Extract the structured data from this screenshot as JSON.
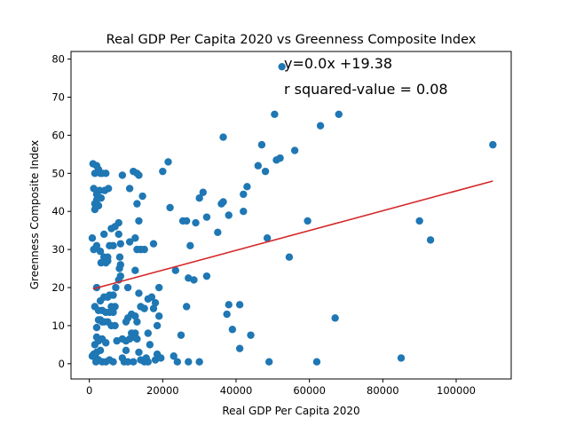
{
  "chart_data": {
    "type": "scatter",
    "title": "Real GDP Per Capita 2020 vs Greenness Composite Index",
    "xlabel": "Real GDP Per Capita 2020",
    "ylabel": "Greenness Composite Index",
    "xlim": [
      -5000,
      115000
    ],
    "ylim": [
      -4,
      82
    ],
    "x_ticks": [
      0,
      20000,
      40000,
      60000,
      80000,
      100000
    ],
    "y_ticks": [
      0,
      10,
      20,
      30,
      40,
      50,
      60,
      70,
      80
    ],
    "x_tick_labels": [
      "0",
      "20000",
      "40000",
      "60000",
      "80000",
      "100000"
    ],
    "y_tick_labels": [
      "0",
      "10",
      "20",
      "30",
      "40",
      "50",
      "60",
      "70",
      "80"
    ],
    "grid": false,
    "point_color": "#1f77b4",
    "line_color": "#d62728",
    "regression": {
      "slope": 0.00026,
      "intercept": 19.38,
      "x_range": [
        1000,
        110000
      ],
      "equation_label": "y=0.0x +19.38",
      "r2_label": "r squared-value = 0.08"
    },
    "points": [
      [
        1000,
        52.5
      ],
      [
        1500,
        50
      ],
      [
        2000,
        52
      ],
      [
        2500,
        51
      ],
      [
        3000,
        50
      ],
      [
        3500,
        50
      ],
      [
        4500,
        50
      ],
      [
        1200,
        46
      ],
      [
        2000,
        44.5
      ],
      [
        2800,
        45.5
      ],
      [
        4200,
        45.5
      ],
      [
        5200,
        46
      ],
      [
        1500,
        42
      ],
      [
        2500,
        41.5
      ],
      [
        3200,
        43.5
      ],
      [
        1500,
        40.5
      ],
      [
        2000,
        43
      ],
      [
        800,
        33
      ],
      [
        1200,
        30
      ],
      [
        2000,
        31
      ],
      [
        3000,
        29.5
      ],
      [
        4000,
        28
      ],
      [
        5000,
        27
      ],
      [
        3200,
        26.5
      ],
      [
        4000,
        34
      ],
      [
        6000,
        35.5
      ],
      [
        7000,
        36
      ],
      [
        8000,
        37
      ],
      [
        9000,
        49.5
      ],
      [
        11000,
        46
      ],
      [
        12000,
        50.5
      ],
      [
        13000,
        50
      ],
      [
        13500,
        49.5
      ],
      [
        8000,
        34
      ],
      [
        8500,
        31.5
      ],
      [
        6500,
        31
      ],
      [
        5500,
        31
      ],
      [
        5000,
        28
      ],
      [
        4500,
        26.5
      ],
      [
        8500,
        26
      ],
      [
        8200,
        25
      ],
      [
        8500,
        23
      ],
      [
        8300,
        28
      ],
      [
        8000,
        22
      ],
      [
        7200,
        20
      ],
      [
        5500,
        18
      ],
      [
        5000,
        17.5
      ],
      [
        6500,
        18
      ],
      [
        4000,
        17.5
      ],
      [
        3000,
        16.5
      ],
      [
        2000,
        20
      ],
      [
        1500,
        15
      ],
      [
        2500,
        14
      ],
      [
        3500,
        14
      ],
      [
        4500,
        13.5
      ],
      [
        5500,
        13.5
      ],
      [
        6500,
        13.5
      ],
      [
        7000,
        15
      ],
      [
        6000,
        15
      ],
      [
        2500,
        11.5
      ],
      [
        3000,
        11.5
      ],
      [
        3500,
        11
      ],
      [
        2000,
        9.5
      ],
      [
        4000,
        11
      ],
      [
        5000,
        11
      ],
      [
        6000,
        10
      ],
      [
        7000,
        10
      ],
      [
        2000,
        7
      ],
      [
        2500,
        6
      ],
      [
        3500,
        6.5
      ],
      [
        4500,
        5.5
      ],
      [
        1500,
        5
      ],
      [
        2000,
        3
      ],
      [
        3000,
        3.5
      ],
      [
        1200,
        2.5
      ],
      [
        800,
        2
      ],
      [
        1800,
        1.5
      ],
      [
        2500,
        1
      ],
      [
        3500,
        0.5
      ],
      [
        4500,
        0.5
      ],
      [
        5500,
        1
      ],
      [
        6500,
        0.5
      ],
      [
        1800,
        0.5
      ],
      [
        7500,
        6
      ],
      [
        9000,
        6.5
      ],
      [
        10000,
        6
      ],
      [
        11000,
        6.5
      ],
      [
        12000,
        7
      ],
      [
        11500,
        8
      ],
      [
        12500,
        8
      ],
      [
        13000,
        6.5
      ],
      [
        10500,
        12
      ],
      [
        11500,
        13
      ],
      [
        12500,
        12.5
      ],
      [
        13000,
        11
      ],
      [
        10000,
        11
      ],
      [
        14000,
        15
      ],
      [
        15000,
        14.5
      ],
      [
        16000,
        17
      ],
      [
        17000,
        17.5
      ],
      [
        18000,
        16
      ],
      [
        17500,
        14.5
      ],
      [
        19000,
        12.5
      ],
      [
        18500,
        10
      ],
      [
        13500,
        18.5
      ],
      [
        10500,
        20
      ],
      [
        11000,
        32
      ],
      [
        12500,
        33
      ],
      [
        13000,
        30
      ],
      [
        14000,
        30
      ],
      [
        15000,
        30
      ],
      [
        12500,
        24.5
      ],
      [
        13500,
        37.5
      ],
      [
        14500,
        44
      ],
      [
        13000,
        42
      ],
      [
        17500,
        31.5
      ],
      [
        19000,
        20
      ],
      [
        22000,
        41
      ],
      [
        23500,
        24.5
      ],
      [
        24000,
        0.5
      ],
      [
        23000,
        2
      ],
      [
        25000,
        7.5
      ],
      [
        26500,
        15
      ],
      [
        27000,
        22.5
      ],
      [
        28500,
        22
      ],
      [
        25500,
        37.5
      ],
      [
        26500,
        37.5
      ],
      [
        27500,
        31
      ],
      [
        29000,
        37
      ],
      [
        30000,
        43.5
      ],
      [
        31000,
        45
      ],
      [
        32000,
        38.5
      ],
      [
        32000,
        23
      ],
      [
        35000,
        34.5
      ],
      [
        36000,
        42
      ],
      [
        36500,
        42.5
      ],
      [
        38000,
        39
      ],
      [
        36500,
        59.5
      ],
      [
        37500,
        13
      ],
      [
        38000,
        15.5
      ],
      [
        39000,
        9
      ],
      [
        41000,
        4
      ],
      [
        41000,
        15.5
      ],
      [
        42000,
        40
      ],
      [
        42000,
        44.5
      ],
      [
        43000,
        46.5
      ],
      [
        44000,
        7.5
      ],
      [
        46000,
        52
      ],
      [
        47000,
        57.5
      ],
      [
        48000,
        50.5
      ],
      [
        48500,
        33
      ],
      [
        49000,
        0.5
      ],
      [
        50500,
        65.5
      ],
      [
        51000,
        53.5
      ],
      [
        52000,
        54
      ],
      [
        52500,
        78
      ],
      [
        54500,
        28
      ],
      [
        56000,
        56
      ],
      [
        59500,
        37.5
      ],
      [
        62000,
        0.5
      ],
      [
        63000,
        62.5
      ],
      [
        67000,
        12
      ],
      [
        68000,
        65.5
      ],
      [
        85000,
        1.5
      ],
      [
        90000,
        37.5
      ],
      [
        93000,
        32.5
      ],
      [
        110000,
        57.5
      ],
      [
        10500,
        0.5
      ],
      [
        12000,
        0.5
      ],
      [
        15000,
        0.5
      ],
      [
        16000,
        0.5
      ],
      [
        18000,
        1
      ],
      [
        18500,
        2.5
      ],
      [
        19500,
        1.5
      ],
      [
        20000,
        50.5
      ],
      [
        21500,
        53
      ],
      [
        27000,
        0.5
      ],
      [
        30000,
        0.5
      ],
      [
        15500,
        1.5
      ],
      [
        13500,
        3
      ],
      [
        10000,
        3.5
      ],
      [
        9000,
        1.5
      ],
      [
        16000,
        8
      ],
      [
        16500,
        5
      ],
      [
        9500,
        0.5
      ],
      [
        14000,
        1
      ]
    ]
  }
}
